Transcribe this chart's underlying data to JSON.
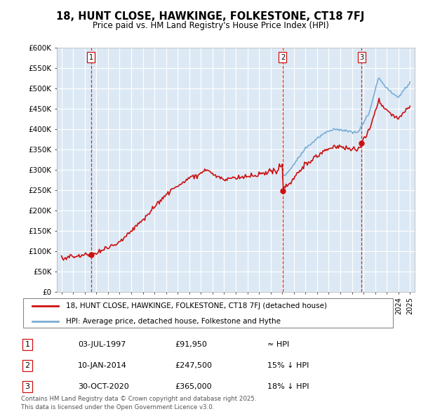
{
  "title": "18, HUNT CLOSE, HAWKINGE, FOLKESTONE, CT18 7FJ",
  "subtitle": "Price paid vs. HM Land Registry's House Price Index (HPI)",
  "ylim": [
    0,
    600000
  ],
  "yticks": [
    0,
    50000,
    100000,
    150000,
    200000,
    250000,
    300000,
    350000,
    400000,
    450000,
    500000,
    550000,
    600000
  ],
  "ytick_labels": [
    "£0",
    "£50K",
    "£100K",
    "£150K",
    "£200K",
    "£250K",
    "£300K",
    "£350K",
    "£400K",
    "£450K",
    "£500K",
    "£550K",
    "£600K"
  ],
  "sale_year_nums": [
    1997.54,
    2014.04,
    2020.84
  ],
  "sale_prices": [
    91950,
    247500,
    365000
  ],
  "sale_labels": [
    "1",
    "2",
    "3"
  ],
  "legend_line1": "18, HUNT CLOSE, HAWKINGE, FOLKESTONE, CT18 7FJ (detached house)",
  "legend_line2": "HPI: Average price, detached house, Folkestone and Hythe",
  "footer": "Contains HM Land Registry data © Crown copyright and database right 2025.\nThis data is licensed under the Open Government Licence v3.0.",
  "table_rows": [
    [
      "1",
      "03-JUL-1997",
      "£91,950",
      "≈ HPI"
    ],
    [
      "2",
      "10-JAN-2014",
      "£247,500",
      "15% ↓ HPI"
    ],
    [
      "3",
      "30-OCT-2020",
      "£365,000",
      "18% ↓ HPI"
    ]
  ],
  "hpi_color": "#7aadd4",
  "price_color": "#cc1111",
  "vline_color": "#cc1111",
  "chart_bg": "#dce9f5",
  "grid_color": "#ffffff",
  "background_color": "#ffffff"
}
